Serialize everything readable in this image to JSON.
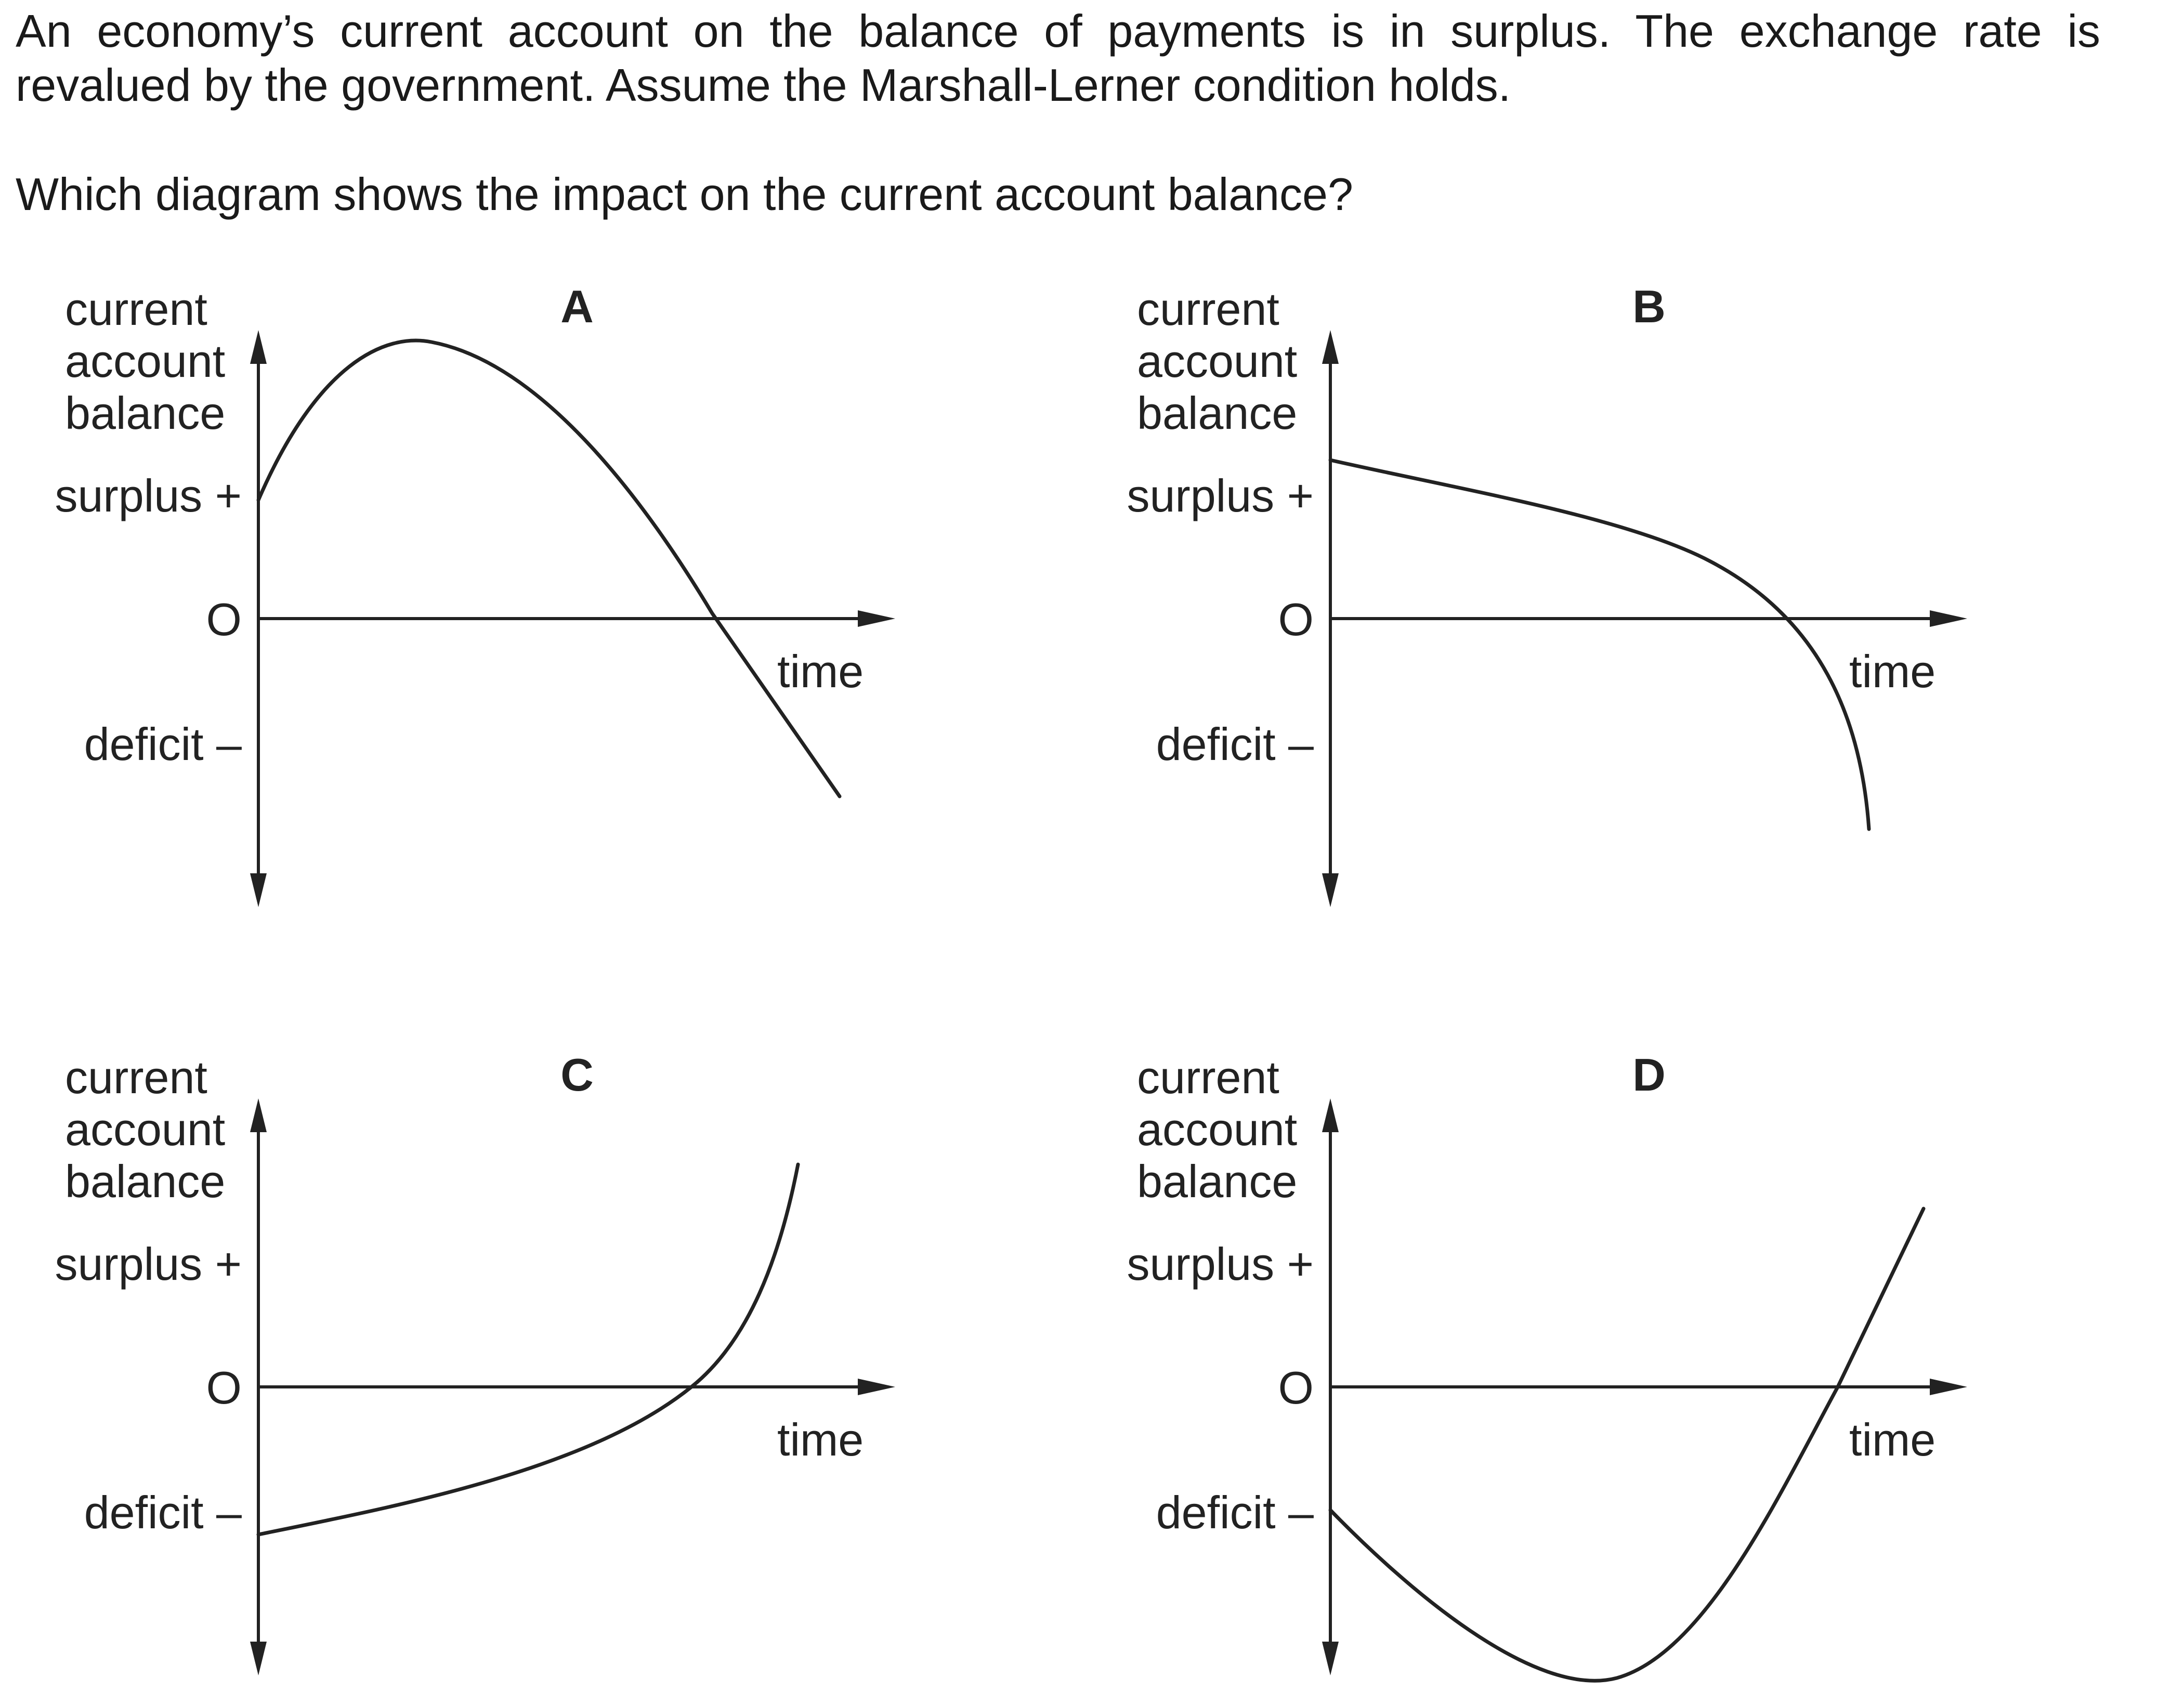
{
  "question": {
    "line1": "An economy’s current account on the balance of payments is in surplus. The exchange rate is",
    "line2": "revalued by the government. Assume the Marshall-Lerner condition holds.",
    "prompt": "Which diagram shows the impact on the current account balance?"
  },
  "axis_labels": {
    "y_label_lines": [
      "current",
      "account",
      "balance"
    ],
    "surplus": "surplus +",
    "origin": "O",
    "deficit": "deficit –",
    "x_label": "time"
  },
  "options": [
    {
      "letter": "A",
      "curve_shape": "starts at surplus, rises to a peak, then falls steadily into deficit"
    },
    {
      "letter": "B",
      "curve_shape": "starts at surplus, declines gradually, then falls sharply into deficit"
    },
    {
      "letter": "C",
      "curve_shape": "starts at deficit, rises gradually, then rises sharply into surplus"
    },
    {
      "letter": "D",
      "curve_shape": "starts at deficit, falls deeper into deficit (J-curve), then rises into surplus"
    }
  ]
}
